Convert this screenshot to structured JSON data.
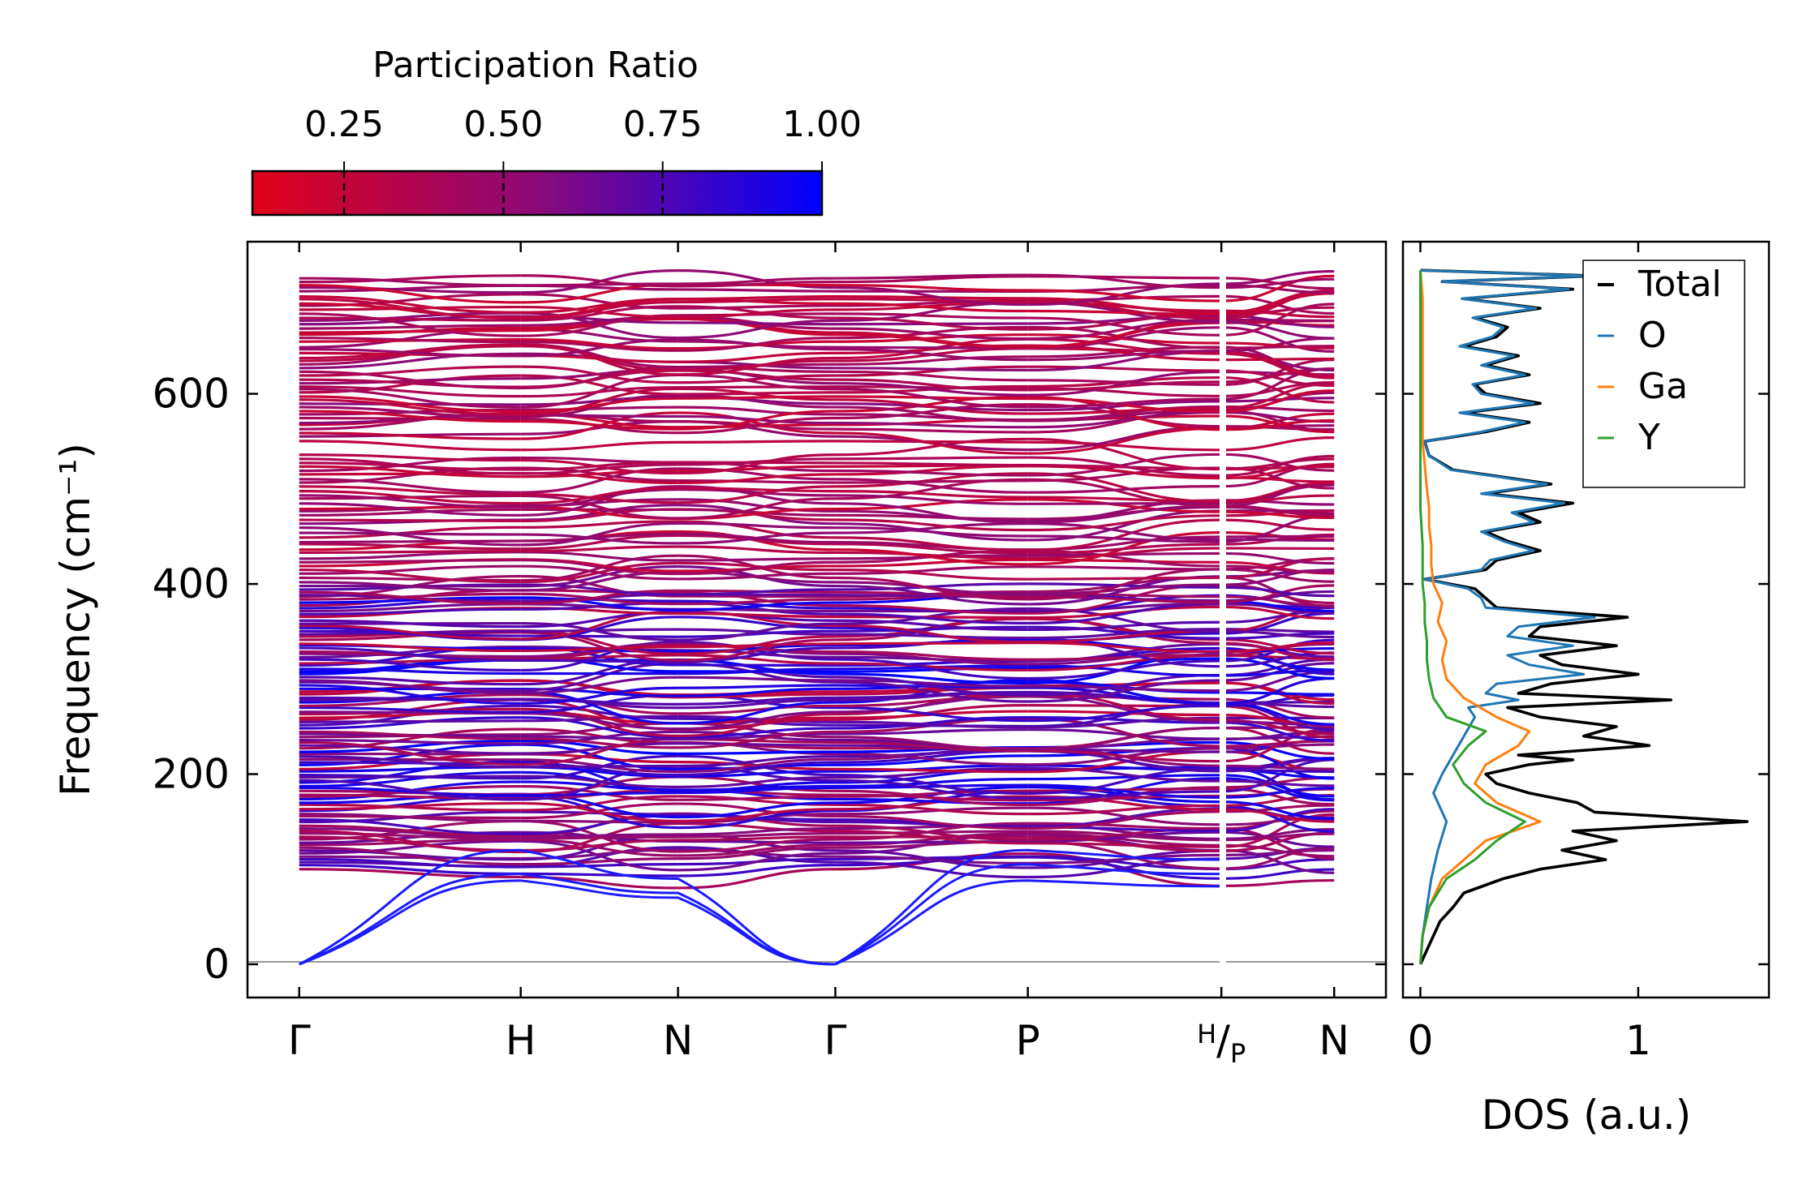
{
  "colorbar": {
    "title": "Participation Ratio",
    "ticks": [
      0.25,
      0.5,
      0.75,
      1.0
    ],
    "tick_labels": [
      "0.25",
      "0.50",
      "0.75",
      "1.00"
    ],
    "range": [
      0.106,
      1.0
    ],
    "color_low": "#e0001a",
    "color_mid": "#8b0a78",
    "color_high": "#0000ff"
  },
  "chart_data": [
    {
      "type": "line",
      "name": "phonon-band-structure",
      "ylabel": "Frequency (cm⁻¹)",
      "ylim": [
        -35,
        760
      ],
      "yticks": [
        0,
        200,
        400,
        600
      ],
      "ytick_labels": [
        "0",
        "200",
        "400",
        "600"
      ],
      "kpath": [
        {
          "label": "Γ",
          "x": 0.0
        },
        {
          "label": "H",
          "x": 0.214
        },
        {
          "label": "N",
          "x": 0.366
        },
        {
          "label": "Γ",
          "x": 0.518
        },
        {
          "label": "P",
          "x": 0.704
        },
        {
          "label": "H/P",
          "x": 0.891
        },
        {
          "label": "N",
          "x": 1.0
        }
      ],
      "xlim": [
        -0.05,
        1.05
      ],
      "acoustic_branches": [
        {
          "x": [
            0.0,
            0.214,
            0.366,
            0.518
          ],
          "y": [
            0,
            95,
            75,
            0
          ]
        },
        {
          "x": [
            0.0,
            0.214,
            0.366,
            0.518
          ],
          "y": [
            0,
            88,
            70,
            0
          ]
        },
        {
          "x": [
            0.0,
            0.214,
            0.366,
            0.518
          ],
          "y": [
            0,
            120,
            90,
            0
          ]
        },
        {
          "x": [
            0.518,
            0.704,
            0.891
          ],
          "y": [
            0,
            88,
            82
          ]
        },
        {
          "x": [
            0.518,
            0.704,
            0.891
          ],
          "y": [
            0,
            105,
            95
          ]
        },
        {
          "x": [
            0.518,
            0.704,
            0.891
          ],
          "y": [
            0,
            120,
            110
          ]
        }
      ],
      "optical_band_ranges": [
        {
          "from": 100,
          "to": 400,
          "dominant_participation": "mixed"
        },
        {
          "from": 400,
          "to": 540,
          "dominant_participation": "low"
        },
        {
          "from": 550,
          "to": 725,
          "dominant_participation": "low"
        }
      ],
      "zero_line": 0
    },
    {
      "type": "line",
      "name": "density-of-states",
      "xlabel": "DOS (a.u.)",
      "xlim": [
        -0.08,
        1.6
      ],
      "xticks": [
        0,
        1
      ],
      "xtick_labels": [
        "0",
        "1"
      ],
      "ylim": [
        -35,
        760
      ],
      "legend": {
        "position": "top-right",
        "entries": [
          "Total",
          "O",
          "Ga",
          "Y"
        ]
      },
      "series": [
        {
          "name": "Total",
          "color": "#000000",
          "freq": [
            0,
            15,
            30,
            45,
            60,
            75,
            90,
            100,
            110,
            120,
            130,
            140,
            150,
            160,
            170,
            180,
            190,
            200,
            210,
            215,
            220,
            230,
            240,
            250,
            260,
            270,
            278,
            285,
            295,
            305,
            315,
            325,
            335,
            345,
            355,
            365,
            375,
            385,
            395,
            405,
            415,
            425,
            435,
            445,
            455,
            465,
            475,
            485,
            495,
            505,
            520,
            535,
            550,
            560,
            570,
            580,
            590,
            600,
            610,
            620,
            630,
            640,
            650,
            660,
            670,
            680,
            690,
            700,
            710,
            718,
            724,
            730
          ],
          "dos": [
            0,
            0.03,
            0.06,
            0.09,
            0.15,
            0.2,
            0.38,
            0.55,
            0.85,
            0.65,
            0.9,
            0.7,
            1.5,
            0.8,
            0.72,
            0.5,
            0.35,
            0.3,
            0.5,
            0.7,
            0.45,
            1.05,
            0.75,
            0.9,
            0.55,
            0.4,
            1.15,
            0.45,
            0.6,
            1.0,
            0.65,
            0.55,
            0.9,
            0.5,
            0.55,
            0.95,
            0.35,
            0.3,
            0.25,
            0.02,
            0.3,
            0.35,
            0.55,
            0.4,
            0.3,
            0.55,
            0.45,
            0.7,
            0.3,
            0.6,
            0.15,
            0.04,
            0.02,
            0.3,
            0.5,
            0.2,
            0.55,
            0.3,
            0.25,
            0.5,
            0.3,
            0.45,
            0.2,
            0.35,
            0.4,
            0.25,
            0.55,
            0.2,
            0.7,
            0.1,
            0.8,
            0.0
          ]
        },
        {
          "name": "O",
          "color": "#1f77b4",
          "freq": [
            0,
            30,
            60,
            90,
            120,
            150,
            180,
            200,
            220,
            240,
            260,
            270,
            278,
            285,
            295,
            305,
            315,
            325,
            335,
            345,
            355,
            365,
            375,
            385,
            395,
            405,
            415,
            425,
            435,
            445,
            455,
            465,
            475,
            485,
            495,
            505,
            520,
            535,
            550,
            560,
            570,
            580,
            590,
            600,
            610,
            620,
            630,
            640,
            650,
            660,
            670,
            680,
            690,
            700,
            710,
            718,
            724,
            730
          ],
          "dos": [
            0,
            0.01,
            0.03,
            0.05,
            0.08,
            0.12,
            0.06,
            0.1,
            0.15,
            0.2,
            0.25,
            0.22,
            0.45,
            0.3,
            0.35,
            0.75,
            0.5,
            0.4,
            0.7,
            0.4,
            0.45,
            0.8,
            0.3,
            0.28,
            0.22,
            0.02,
            0.28,
            0.32,
            0.52,
            0.38,
            0.28,
            0.52,
            0.42,
            0.66,
            0.28,
            0.58,
            0.14,
            0.04,
            0.02,
            0.28,
            0.48,
            0.18,
            0.52,
            0.28,
            0.24,
            0.48,
            0.28,
            0.43,
            0.18,
            0.33,
            0.38,
            0.24,
            0.53,
            0.19,
            0.68,
            0.1,
            0.78,
            0.0
          ]
        },
        {
          "name": "Ga",
          "color": "#ff7f0e",
          "freq": [
            0,
            30,
            60,
            90,
            110,
            130,
            150,
            170,
            190,
            210,
            230,
            245,
            260,
            280,
            300,
            320,
            340,
            360,
            380,
            400,
            420,
            440,
            460,
            480,
            500,
            550,
            600,
            650,
            700,
            730
          ],
          "dos": [
            0,
            0.01,
            0.04,
            0.1,
            0.2,
            0.3,
            0.55,
            0.35,
            0.25,
            0.3,
            0.45,
            0.5,
            0.35,
            0.2,
            0.12,
            0.1,
            0.12,
            0.08,
            0.1,
            0.06,
            0.05,
            0.05,
            0.04,
            0.04,
            0.03,
            0.01,
            0.01,
            0.01,
            0.01,
            0.0
          ]
        },
        {
          "name": "Y",
          "color": "#2ca02c",
          "freq": [
            0,
            30,
            60,
            90,
            110,
            130,
            150,
            170,
            190,
            210,
            230,
            245,
            260,
            280,
            300,
            320,
            340,
            360,
            380,
            400,
            420,
            440,
            480,
            520,
            600,
            700,
            730
          ],
          "dos": [
            0,
            0.01,
            0.04,
            0.12,
            0.25,
            0.35,
            0.48,
            0.3,
            0.2,
            0.15,
            0.22,
            0.3,
            0.12,
            0.06,
            0.04,
            0.03,
            0.03,
            0.02,
            0.02,
            0.01,
            0.01,
            0.01,
            0.0,
            0.0,
            0.0,
            0.0,
            0.0
          ]
        }
      ]
    }
  ]
}
